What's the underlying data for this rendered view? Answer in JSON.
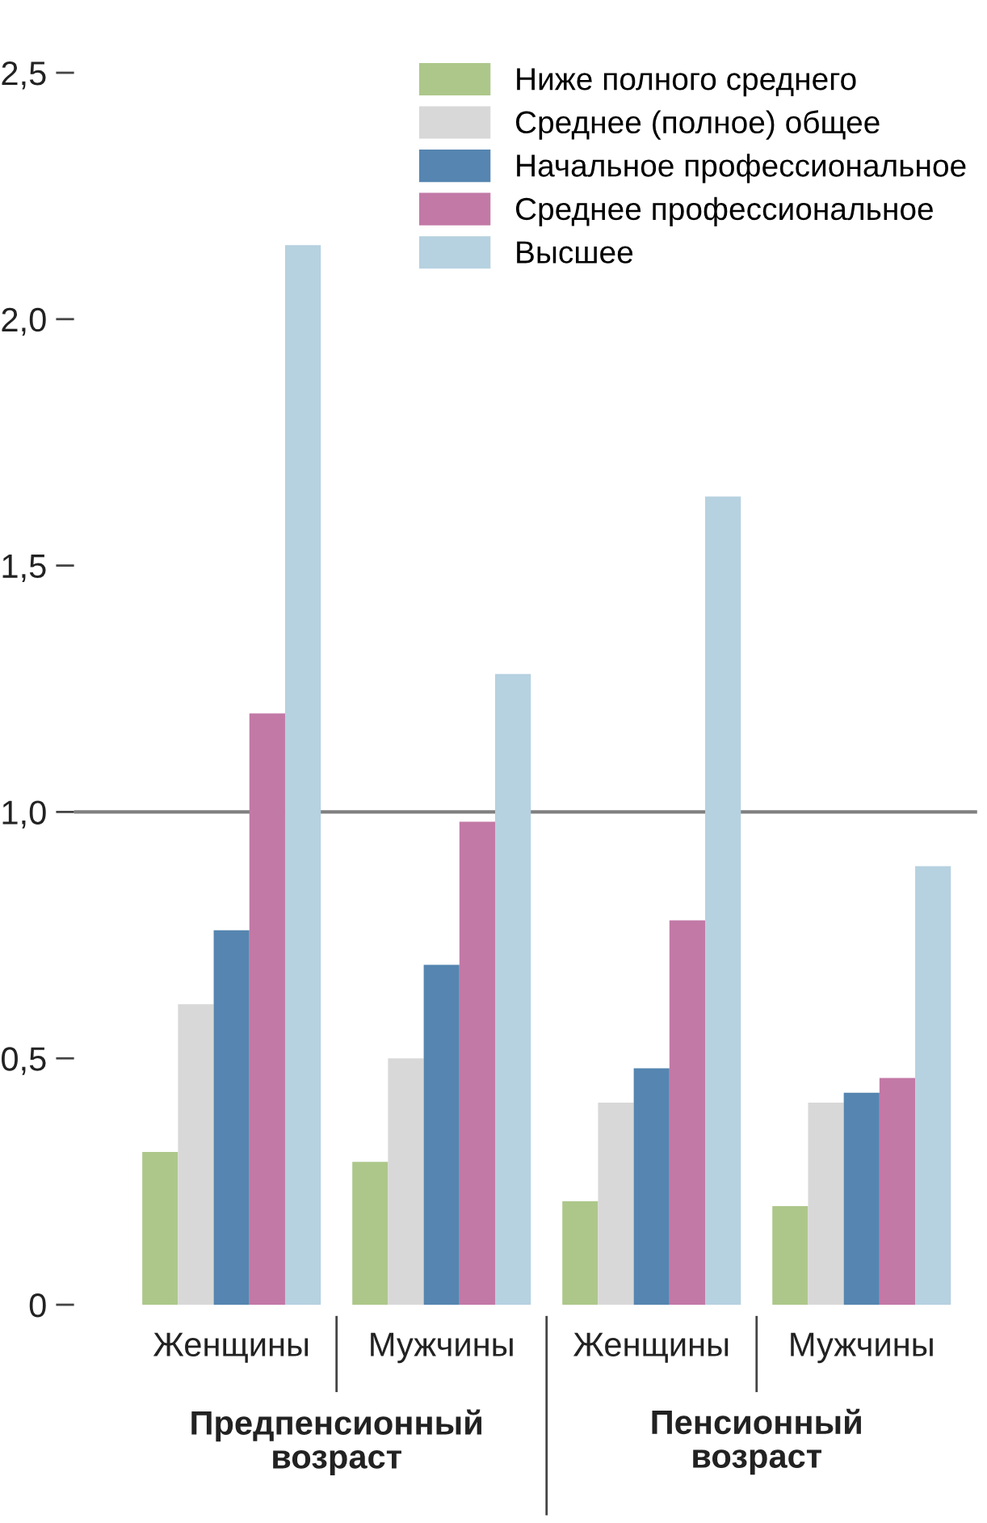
{
  "chart_data": {
    "type": "bar",
    "categories": [
      "Женщины",
      "Мужчины",
      "Женщины",
      "Мужчины"
    ],
    "series": [
      {
        "name": "Ниже полного среднего",
        "color": "#adc78a",
        "values": [
          0.31,
          0.29,
          0.21,
          0.2
        ]
      },
      {
        "name": "Среднее (полное) общее",
        "color": "#d8d8d8",
        "values": [
          0.61,
          0.5,
          0.41,
          0.41
        ]
      },
      {
        "name": "Начальное профессиональное",
        "color": "#5585b0",
        "values": [
          0.76,
          0.69,
          0.48,
          0.43
        ]
      },
      {
        "name": "Среднее профессиональное",
        "color": "#c279a6",
        "values": [
          1.2,
          0.98,
          0.78,
          0.46
        ]
      },
      {
        "name": "Высшее",
        "color": "#b6d1e0",
        "values": [
          2.15,
          1.28,
          1.64,
          0.89
        ]
      }
    ],
    "ylim": [
      0,
      2.5
    ],
    "yticks": [
      {
        "value": 0,
        "label": "0"
      },
      {
        "value": 0.5,
        "label": "0,5"
      },
      {
        "value": 1,
        "label": "1,0"
      },
      {
        "value": 1.5,
        "label": "1,5"
      },
      {
        "value": 2,
        "label": "2,0"
      },
      {
        "value": 2.5,
        "label": "2,5"
      }
    ],
    "ref_lines": [
      {
        "axis": "y",
        "value": 1,
        "color": "#808080"
      }
    ],
    "annotations": [
      "Предпенсионный возраст",
      "Пенсионный возраст"
    ],
    "legend": "top right",
    "grid": false
  }
}
